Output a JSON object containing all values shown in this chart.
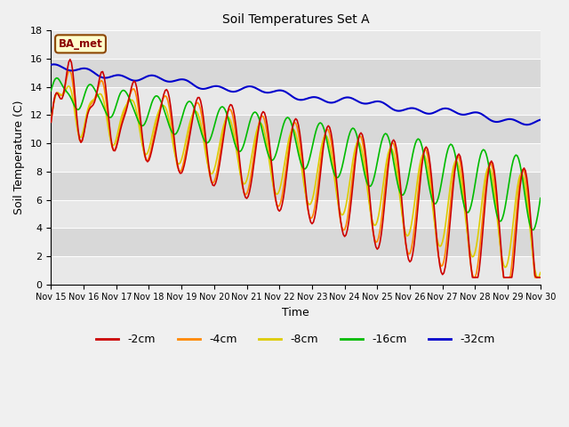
{
  "title": "Soil Temperatures Set A",
  "xlabel": "Time",
  "ylabel": "Soil Temperature (C)",
  "ylim": [
    0,
    18
  ],
  "xlim": [
    0,
    360
  ],
  "annotation": "BA_met",
  "fig_bg": "#f0f0f0",
  "plot_bg": "#e8e8e8",
  "band_colors": [
    "#e8e8e8",
    "#d8d8d8"
  ],
  "colors": {
    "-2cm": "#cc0000",
    "-4cm": "#ff8800",
    "-8cm": "#ddcc00",
    "-16cm": "#00bb00",
    "-32cm": "#0000cc"
  },
  "x_ticks_labels": [
    "Nov 15",
    "Nov 16",
    "Nov 17",
    "Nov 18",
    "Nov 19",
    "Nov 20",
    "Nov 21",
    "Nov 22",
    "Nov 23",
    "Nov 24",
    "Nov 25",
    "Nov 26",
    "Nov 27",
    "Nov 28",
    "Nov 29",
    "Nov 30"
  ],
  "x_ticks_pos": [
    0,
    24,
    48,
    72,
    96,
    120,
    144,
    168,
    192,
    216,
    240,
    264,
    288,
    312,
    336,
    360
  ],
  "yticks": [
    0,
    2,
    4,
    6,
    8,
    10,
    12,
    14,
    16,
    18
  ]
}
